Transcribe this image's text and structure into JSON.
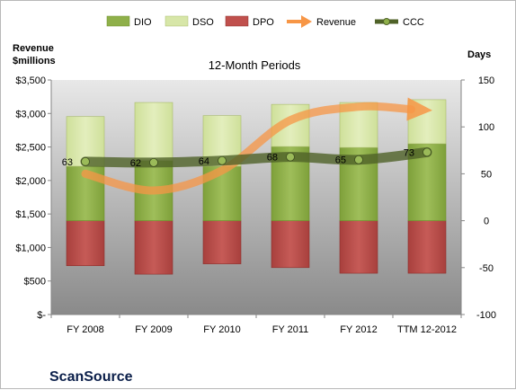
{
  "chart_data": {
    "type": "bar",
    "title": "12-Month Periods",
    "categories": [
      "FY 2008",
      "FY 2009",
      "FY 2010",
      "FY 2011",
      "FY 2012",
      "TTM 12-2012"
    ],
    "left_axis": {
      "title_lines": [
        "Revenue",
        "$millions"
      ],
      "ylim": [
        0,
        3500
      ],
      "ticks": [
        0,
        500,
        1000,
        1500,
        2000,
        2500,
        3000,
        3500
      ],
      "tick_labels": [
        "$-",
        "$500",
        "$1,000",
        "$1,500",
        "$2,000",
        "$2,500",
        "$3,000",
        "$3,500"
      ]
    },
    "right_axis": {
      "title": "Days",
      "ylim": [
        -100,
        150
      ],
      "ticks": [
        -100,
        -50,
        0,
        50,
        100,
        150
      ],
      "tick_labels": [
        "-100",
        "-50",
        "0",
        "50",
        "100",
        "150"
      ]
    },
    "series": [
      {
        "name": "DIO",
        "axis": "right",
        "kind": "bar",
        "color": "#8fb04a",
        "values": [
          58,
          64,
          58,
          79,
          78,
          82
        ]
      },
      {
        "name": "DSO",
        "axis": "right",
        "kind": "bar-stacked-on-DIO",
        "color": "#d7e6a8",
        "values": [
          53,
          62,
          54,
          45,
          48,
          47
        ]
      },
      {
        "name": "DPO",
        "axis": "right",
        "kind": "bar-negative",
        "color": "#c0504d",
        "values": [
          -48,
          -57,
          -46,
          -50,
          -56,
          -56
        ]
      },
      {
        "name": "Revenue",
        "axis": "left",
        "kind": "line-arrow",
        "color": "#f79646",
        "values": [
          2100,
          1850,
          2150,
          2900,
          3100,
          3050
        ]
      },
      {
        "name": "CCC",
        "axis": "right",
        "kind": "line",
        "color": "#4f6228",
        "values": [
          63,
          62,
          64,
          68,
          65,
          73
        ]
      }
    ],
    "ccc_labels": [
      "63",
      "62",
      "64",
      "68",
      "65",
      "73"
    ],
    "legend": {
      "position": "top",
      "items": [
        "DIO",
        "DSO",
        "DPO",
        "Revenue",
        "CCC"
      ]
    },
    "grid": false
  },
  "company": "ScanSource",
  "colors": {
    "plot_bg_top": "#e6e6e6",
    "plot_bg_bottom": "#8c8c8c",
    "revenue": "#f79646",
    "ccc": "#4f6228"
  }
}
